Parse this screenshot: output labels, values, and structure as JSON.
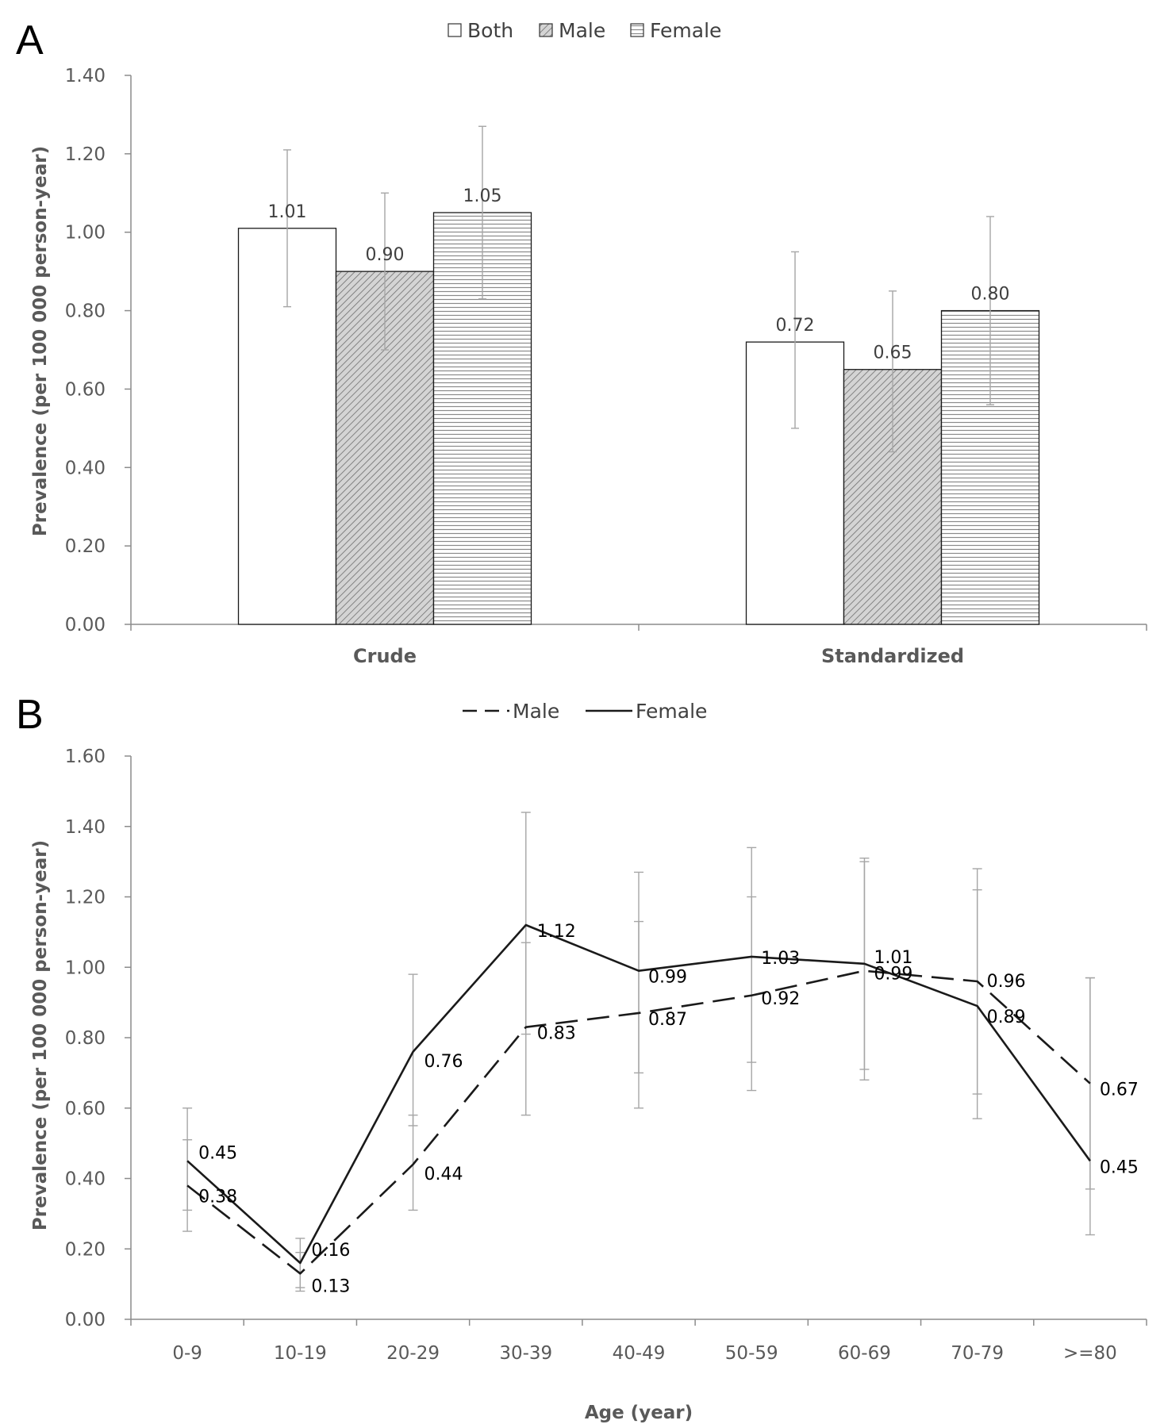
{
  "chart_data": [
    {
      "panel": "A",
      "type": "bar",
      "categories": [
        "Crude",
        "Standardized"
      ],
      "series": [
        {
          "name": "Both",
          "values": [
            1.01,
            0.72
          ],
          "ci_low": [
            0.81,
            0.5
          ],
          "ci_high": [
            1.21,
            0.95
          ],
          "pattern": "none"
        },
        {
          "name": "Male",
          "values": [
            0.9,
            0.65
          ],
          "ci_low": [
            0.7,
            0.44
          ],
          "ci_high": [
            1.1,
            0.85
          ],
          "pattern": "diagonal"
        },
        {
          "name": "Female",
          "values": [
            1.05,
            0.8
          ],
          "ci_low": [
            0.83,
            0.56
          ],
          "ci_high": [
            1.27,
            1.04
          ],
          "pattern": "horizontal"
        }
      ],
      "data_labels": [
        [
          "1.01",
          "0.72"
        ],
        [
          "0.90",
          "0.65"
        ],
        [
          "1.05",
          "0.80"
        ]
      ],
      "ylabel": "Prevalence (per 100 000 person-year)",
      "xlabel": "",
      "ylim": [
        0,
        1.4
      ],
      "yticks": [
        "0.00",
        "0.20",
        "0.40",
        "0.60",
        "0.80",
        "1.00",
        "1.20",
        "1.40"
      ],
      "legend": "top-center",
      "grid": false
    },
    {
      "panel": "B",
      "type": "line",
      "categories": [
        "0-9",
        "10-19",
        "20-29",
        "30-39",
        "40-49",
        "50-59",
        "60-69",
        "70-79",
        ">=80"
      ],
      "series": [
        {
          "name": "Male",
          "style": "dashed",
          "values": [
            0.38,
            0.13,
            0.44,
            0.83,
            0.87,
            0.92,
            0.99,
            0.96,
            0.67
          ],
          "ci_low": [
            0.25,
            0.08,
            0.31,
            0.58,
            0.6,
            0.65,
            0.68,
            0.57,
            0.24
          ],
          "ci_high": [
            0.51,
            0.19,
            0.58,
            1.07,
            1.13,
            1.2,
            1.3,
            1.22,
            0.97
          ]
        },
        {
          "name": "Female",
          "style": "solid",
          "values": [
            0.45,
            0.16,
            0.76,
            1.12,
            0.99,
            1.03,
            1.01,
            0.89,
            0.45
          ],
          "ci_low": [
            0.31,
            0.09,
            0.55,
            0.81,
            0.7,
            0.73,
            0.71,
            0.64,
            0.37
          ],
          "ci_high": [
            0.6,
            0.23,
            0.98,
            1.44,
            1.27,
            1.34,
            1.31,
            1.28,
            0.97
          ]
        }
      ],
      "male_labels": [
        "0.38",
        "0.13",
        "0.44",
        "0.83",
        "0.87",
        "0.92",
        "0.99",
        "0.96",
        "0.67"
      ],
      "female_labels": [
        "0.45",
        "0.16",
        "0.76",
        "1.12",
        "0.99",
        "1.03",
        "1.01",
        "0.89",
        "0.45"
      ],
      "ylabel": "Prevalence (per 100 000 person-year)",
      "xlabel": "Age (year)",
      "ylim": [
        0,
        1.6
      ],
      "yticks": [
        "0.00",
        "0.20",
        "0.40",
        "0.60",
        "0.80",
        "1.00",
        "1.20",
        "1.40",
        "1.60"
      ],
      "legend": "top-center",
      "grid": false
    }
  ]
}
